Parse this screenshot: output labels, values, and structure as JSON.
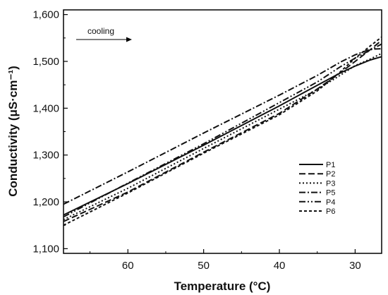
{
  "chart_data": {
    "type": "line",
    "title": "",
    "xlabel": "Temperature (°C)",
    "ylabel": "Conductivity (μS·cm⁻¹)",
    "xlim": [
      68.5,
      26.5
    ],
    "ylim": [
      1090,
      1610
    ],
    "x_reversed": true,
    "x_ticks": [
      60,
      50,
      40,
      30
    ],
    "x_tick_labels": [
      "60",
      "50",
      "40",
      "30"
    ],
    "y_ticks": [
      1100,
      1200,
      1300,
      1400,
      1500,
      1600
    ],
    "y_tick_labels": [
      "1,100",
      "1,200",
      "1,300",
      "1,400",
      "1,500",
      "1,600"
    ],
    "grid": false,
    "legend_position": "lower-right",
    "annotation": {
      "text": "cooling",
      "arrow_direction": "right"
    },
    "series": [
      {
        "name": "P1",
        "style": "solid",
        "x": [
          68.5,
          60,
          50,
          40,
          35,
          32,
          30,
          28,
          26.5
        ],
        "y": [
          1172,
          1239,
          1321,
          1405,
          1449,
          1475,
          1490,
          1503,
          1510
        ]
      },
      {
        "name": "P2",
        "style": "dashed",
        "x": [
          68.5,
          60,
          50,
          40,
          35,
          32,
          30,
          28,
          26.5
        ],
        "y": [
          1158,
          1221,
          1306,
          1389,
          1441,
          1475,
          1500,
          1525,
          1545
        ]
      },
      {
        "name": "P3",
        "style": "dotted",
        "x": [
          68.5,
          60,
          50,
          40,
          35,
          32,
          30,
          28,
          26.5
        ],
        "y": [
          1162,
          1229,
          1314,
          1398,
          1440,
          1470,
          1491,
          1505,
          1517
        ]
      },
      {
        "name": "P5",
        "style": "dashdot",
        "x": [
          68.5,
          60,
          50,
          40,
          35,
          32,
          30,
          28,
          26.5
        ],
        "y": [
          1195,
          1264,
          1347,
          1428,
          1470,
          1498,
          1514,
          1526,
          1527
        ]
      },
      {
        "name": "P4",
        "style": "dashdotdot",
        "x": [
          68.5,
          60,
          50,
          40,
          35,
          32,
          30,
          28,
          26.5
        ],
        "y": [
          1168,
          1240,
          1324,
          1412,
          1456,
          1488,
          1507,
          1524,
          1537
        ]
      },
      {
        "name": "P6",
        "style": "shortdash",
        "x": [
          68.5,
          60,
          50,
          40,
          35,
          32,
          30,
          28,
          26.5
        ],
        "y": [
          1150,
          1219,
          1304,
          1386,
          1437,
          1477,
          1507,
          1533,
          1552
        ]
      }
    ]
  }
}
